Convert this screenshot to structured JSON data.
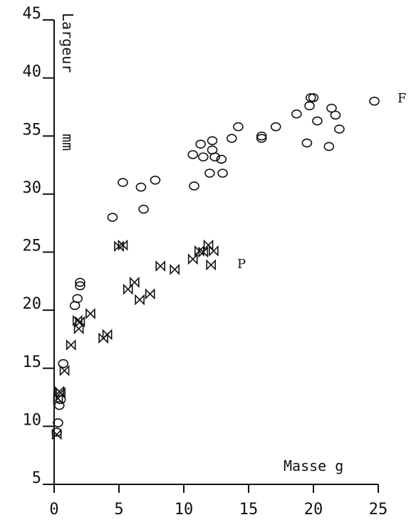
{
  "chart_data": {
    "type": "scatter",
    "title": "",
    "xlabel": "Masse g",
    "ylabel_lines": [
      "Largeur",
      "mm"
    ],
    "xlim": [
      0,
      25
    ],
    "ylim": [
      5,
      45
    ],
    "x_ticks": [
      0,
      5,
      10,
      15,
      20,
      25
    ],
    "x_tick_labels": [
      "0",
      "5",
      "10",
      "15",
      "20",
      "25"
    ],
    "y_ticks": [
      5,
      10,
      15,
      20,
      25,
      30,
      35,
      40,
      45
    ],
    "y_tick_labels": [
      "5",
      "10",
      "15",
      "20",
      "25",
      "30",
      "35",
      "40",
      "45"
    ],
    "grid": false,
    "series": [
      {
        "name": "F",
        "marker": "circle",
        "points": [
          [
            0.2,
            9.5
          ],
          [
            0.3,
            10.3
          ],
          [
            0.4,
            11.8
          ],
          [
            0.5,
            12.3
          ],
          [
            0.7,
            15.4
          ],
          [
            1.6,
            20.4
          ],
          [
            1.8,
            21.0
          ],
          [
            2.0,
            22.1
          ],
          [
            2.0,
            22.4
          ],
          [
            4.5,
            28.0
          ],
          [
            5.3,
            31.0
          ],
          [
            6.7,
            30.6
          ],
          [
            6.9,
            28.7
          ],
          [
            7.8,
            31.2
          ],
          [
            10.7,
            33.4
          ],
          [
            10.8,
            30.7
          ],
          [
            11.3,
            34.3
          ],
          [
            11.5,
            33.2
          ],
          [
            12.0,
            31.8
          ],
          [
            12.2,
            33.8
          ],
          [
            12.2,
            34.6
          ],
          [
            12.4,
            33.2
          ],
          [
            12.9,
            33.0
          ],
          [
            13.0,
            31.8
          ],
          [
            13.7,
            34.8
          ],
          [
            14.2,
            35.8
          ],
          [
            16.0,
            35.0
          ],
          [
            16.0,
            34.8
          ],
          [
            17.1,
            35.8
          ],
          [
            18.7,
            36.9
          ],
          [
            19.5,
            34.4
          ],
          [
            19.7,
            37.6
          ],
          [
            19.8,
            38.3
          ],
          [
            20.0,
            38.3
          ],
          [
            20.3,
            36.3
          ],
          [
            21.2,
            34.1
          ],
          [
            21.4,
            37.4
          ],
          [
            21.7,
            36.8
          ],
          [
            22.0,
            35.6
          ],
          [
            24.7,
            38.0
          ]
        ]
      },
      {
        "name": "P",
        "marker": "bowtie",
        "points": [
          [
            0.2,
            9.3
          ],
          [
            0.3,
            12.4
          ],
          [
            0.4,
            13.0
          ],
          [
            0.5,
            12.9
          ],
          [
            0.8,
            14.8
          ],
          [
            1.3,
            17.0
          ],
          [
            1.8,
            19.1
          ],
          [
            1.9,
            18.4
          ],
          [
            2.0,
            19.0
          ],
          [
            2.8,
            19.7
          ],
          [
            3.8,
            17.6
          ],
          [
            4.1,
            17.9
          ],
          [
            5.0,
            25.5
          ],
          [
            5.3,
            25.6
          ],
          [
            5.7,
            21.8
          ],
          [
            6.2,
            22.4
          ],
          [
            6.6,
            20.9
          ],
          [
            7.4,
            21.4
          ],
          [
            8.2,
            23.8
          ],
          [
            9.3,
            23.5
          ],
          [
            10.7,
            24.4
          ],
          [
            11.2,
            25.1
          ],
          [
            11.5,
            25.0
          ],
          [
            11.9,
            25.6
          ],
          [
            12.1,
            23.9
          ],
          [
            12.3,
            25.1
          ]
        ]
      }
    ],
    "annotations": [
      "F",
      "P"
    ]
  },
  "colors": {
    "ink": "#111111",
    "background": "#ffffff"
  }
}
